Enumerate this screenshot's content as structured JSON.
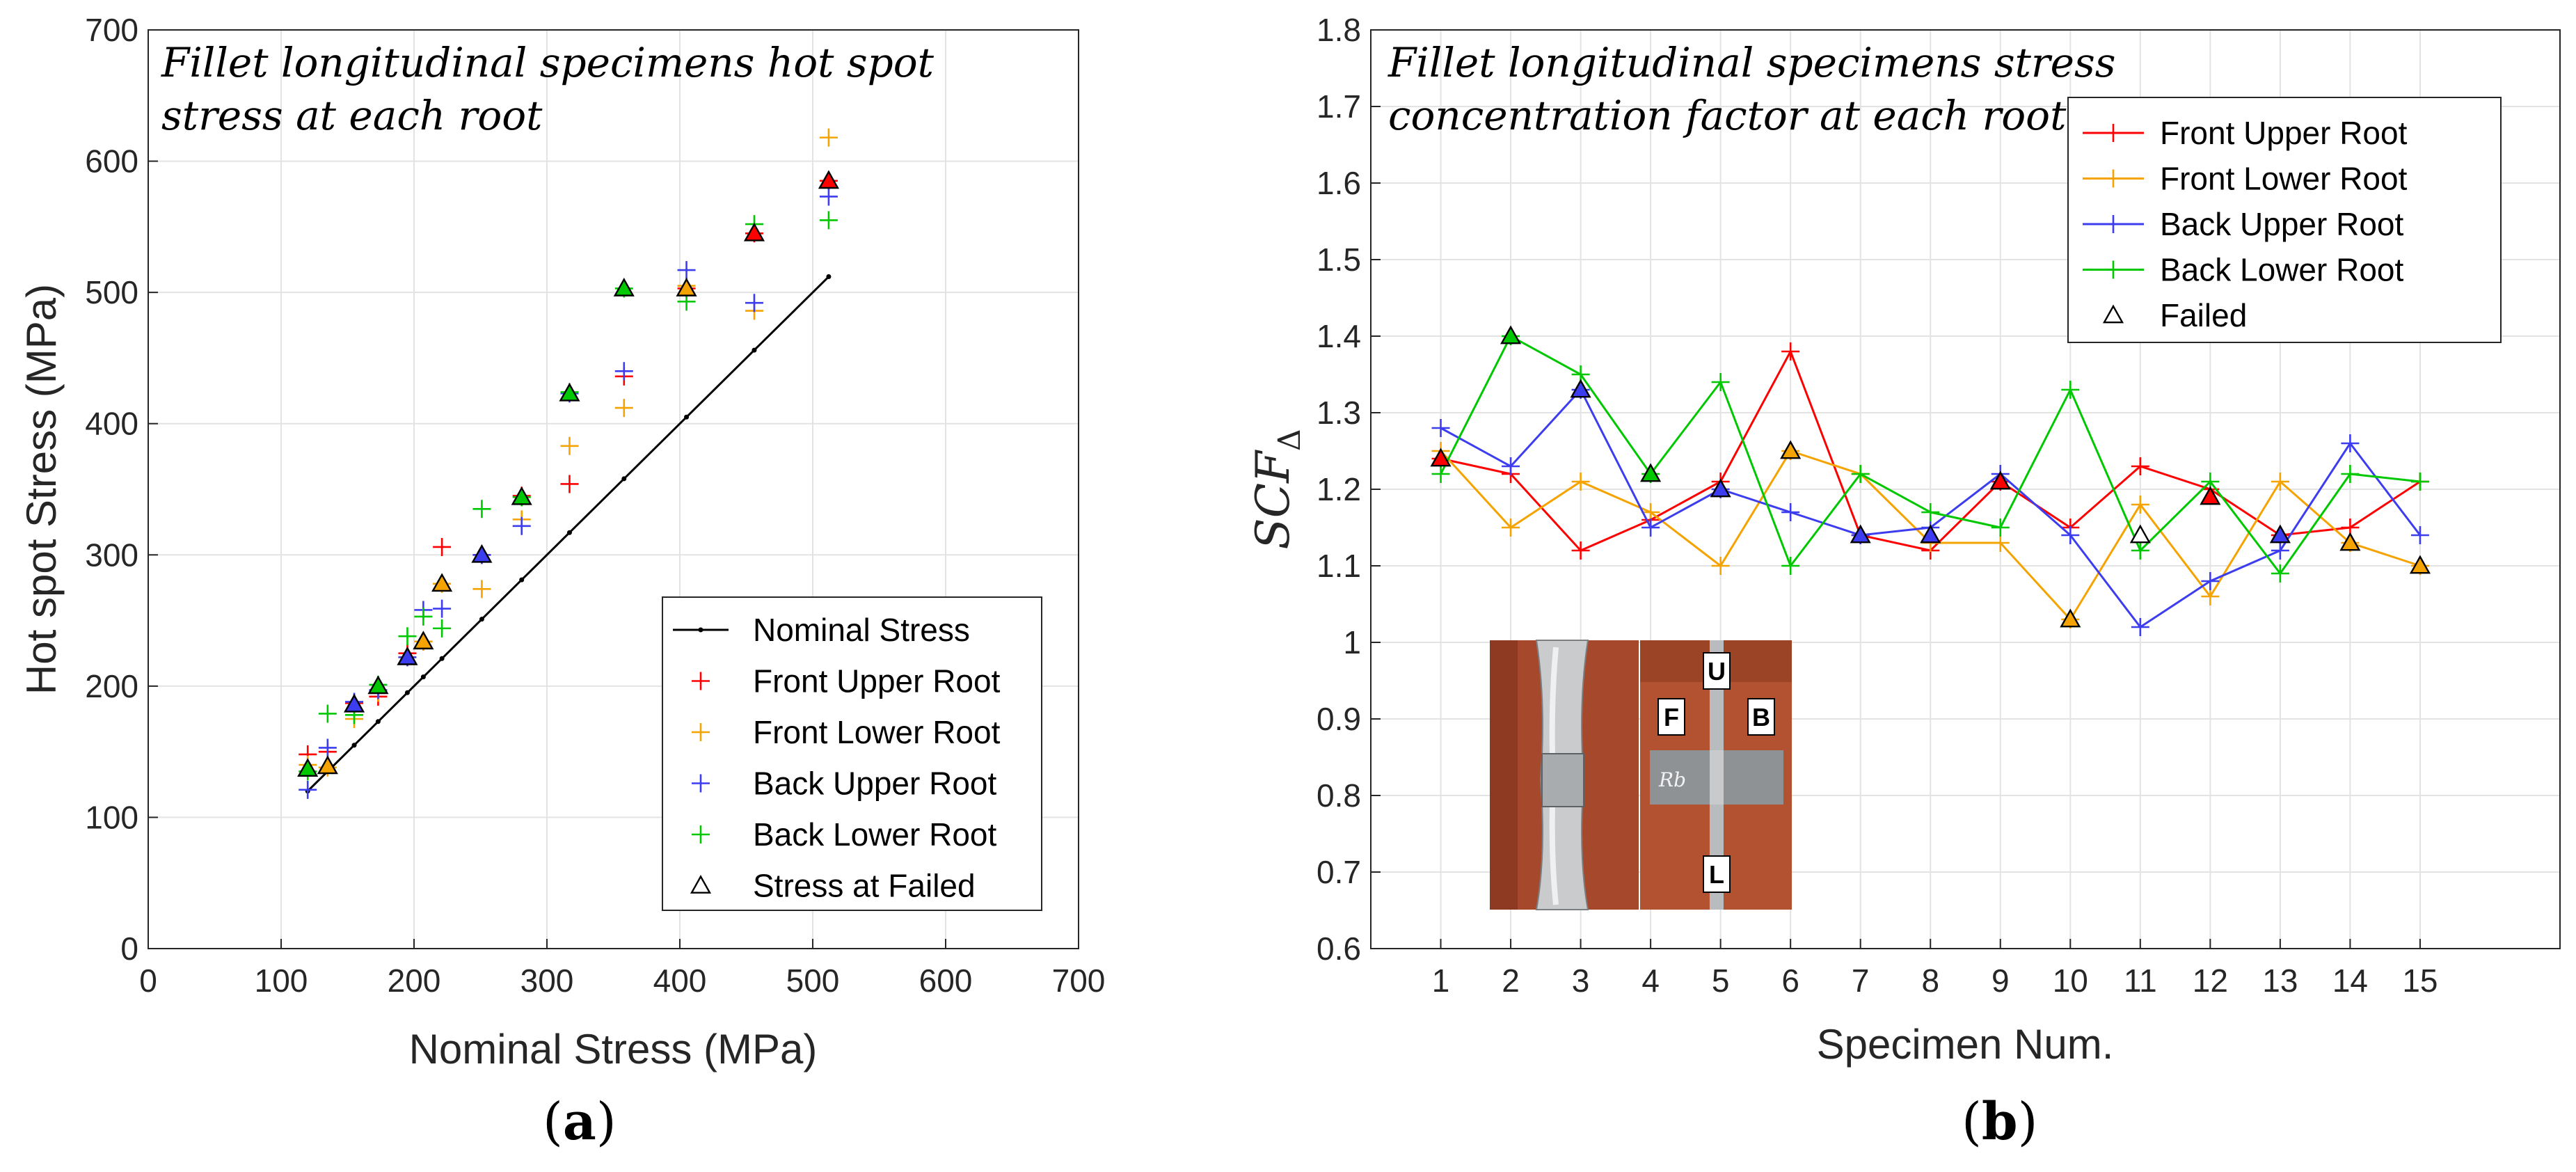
{
  "chart_data": [
    {
      "type": "scatter",
      "title": "Fillet longitudinal specimens hot spot stress at each root",
      "xlabel": "Nominal Stress (MPa)",
      "ylabel": "Hot spot Stress (MPa)",
      "xlim": [
        0,
        700
      ],
      "ylim": [
        0,
        700
      ],
      "xticks": [
        "0",
        "100",
        "200",
        "300",
        "400",
        "500",
        "600",
        "700"
      ],
      "yticks": [
        "0",
        "100",
        "200",
        "300",
        "400",
        "500",
        "600",
        "700"
      ],
      "grid": true,
      "legend_position": "bottom-right",
      "legend": [
        "Nominal Stress",
        "Front Upper Root",
        "Front Lower Root",
        "Back Upper Root",
        "Back Lower Root",
        "Stress at Failed"
      ],
      "nominal_x": [
        120,
        135,
        155,
        173,
        195,
        207,
        221,
        251,
        281,
        317,
        358,
        405,
        456,
        512
      ],
      "series": [
        {
          "name": "Front Upper Root",
          "color": "#ff0000",
          "x": [
            120,
            135,
            155,
            173,
            195,
            207,
            221,
            251,
            281,
            317,
            358,
            405,
            456,
            512
          ],
          "y": [
            148,
            150,
            187,
            192,
            225,
            234,
            306,
            300,
            345,
            354,
            436,
            503,
            545,
            585
          ]
        },
        {
          "name": "Front Lower Root",
          "color": "#f5a300",
          "x": [
            120,
            135,
            155,
            173,
            195,
            207,
            221,
            251,
            281,
            317,
            358,
            405,
            456,
            512
          ],
          "y": [
            140,
            138,
            175,
            195,
            222,
            234,
            278,
            274,
            327,
            383,
            412,
            505,
            486,
            618
          ]
        },
        {
          "name": "Back Upper Root",
          "color": "#3d3df0",
          "x": [
            120,
            135,
            155,
            173,
            195,
            207,
            221,
            251,
            281,
            317,
            358,
            405,
            456,
            512
          ],
          "y": [
            121,
            153,
            188,
            197,
            222,
            258,
            259,
            300,
            322,
            423,
            440,
            517,
            492,
            573
          ]
        },
        {
          "name": "Back Lower Root",
          "color": "#00c800",
          "x": [
            120,
            135,
            155,
            173,
            195,
            207,
            221,
            251,
            281,
            317,
            358,
            405,
            456,
            512
          ],
          "y": [
            135,
            179,
            178,
            201,
            238,
            253,
            244,
            335,
            344,
            424,
            503,
            493,
            552,
            555
          ]
        },
        {
          "name": "Stress at Failed",
          "x": [
            120,
            135,
            155,
            173,
            195,
            207,
            221,
            251,
            281,
            317,
            358,
            405,
            456,
            512
          ],
          "y": [
            137,
            139,
            186,
            200,
            222,
            234,
            278,
            300,
            344,
            423,
            503,
            503,
            545,
            585
          ],
          "fill": [
            "#00c800",
            "#f5a300",
            "#3d3df0",
            "#00c800",
            "#3d3df0",
            "#f5a300",
            "#f5a300",
            "#3d3df0",
            "#00c800",
            "#00c800",
            "#00c800",
            "#f5a300",
            "#ff0000",
            "#ff0000"
          ]
        }
      ]
    },
    {
      "type": "line",
      "title": "Fillet longitudinal specimens stress concentration factor at each root",
      "xlabel": "Specimen Num.",
      "ylabel": "SCF",
      "ylabel_subscript": "Δ",
      "xlim": [
        0,
        17
      ],
      "ylim": [
        0.6,
        1.8
      ],
      "xticks": [
        "1",
        "2",
        "3",
        "4",
        "5",
        "6",
        "7",
        "8",
        "9",
        "10",
        "11",
        "12",
        "13",
        "14",
        "15"
      ],
      "yticks": [
        "0.6",
        "0.7",
        "0.8",
        "0.9",
        "1",
        "1.1",
        "1.2",
        "1.3",
        "1.4",
        "1.5",
        "1.6",
        "1.7",
        "1.8"
      ],
      "grid": true,
      "legend_position": "top-right",
      "legend": [
        "Front Upper Root",
        "Front Lower Root",
        "Back Upper Root",
        "Back Lower Root",
        "Failed"
      ],
      "categories": [
        1,
        2,
        3,
        4,
        5,
        6,
        7,
        8,
        9,
        10,
        11,
        12,
        13,
        14,
        15
      ],
      "series": [
        {
          "name": "Front Upper Root",
          "color": "#ff0000",
          "values": [
            1.24,
            1.22,
            1.12,
            1.16,
            1.21,
            1.38,
            1.14,
            1.12,
            1.21,
            1.15,
            1.23,
            1.2,
            1.14,
            1.15,
            1.21
          ]
        },
        {
          "name": "Front Lower Root",
          "color": "#f5a300",
          "values": [
            1.25,
            1.15,
            1.21,
            1.17,
            1.1,
            1.25,
            1.22,
            1.13,
            1.13,
            1.03,
            1.18,
            1.06,
            1.21,
            1.13,
            1.1
          ]
        },
        {
          "name": "Back Upper Root",
          "color": "#3d3df0",
          "values": [
            1.28,
            1.23,
            1.33,
            1.15,
            1.2,
            1.17,
            1.14,
            1.15,
            1.22,
            1.14,
            1.02,
            1.08,
            1.12,
            1.26,
            1.14
          ]
        },
        {
          "name": "Back Lower Root",
          "color": "#00c800",
          "values": [
            1.22,
            1.4,
            1.35,
            1.22,
            1.34,
            1.1,
            1.22,
            1.17,
            1.15,
            1.33,
            1.12,
            1.21,
            1.09,
            1.22,
            1.21
          ]
        },
        {
          "name": "Failed",
          "values": [
            1.24,
            1.4,
            1.33,
            1.22,
            1.2,
            1.25,
            1.14,
            1.14,
            1.21,
            1.03,
            1.14,
            1.19,
            1.14,
            1.13,
            1.1
          ],
          "fill": [
            "#ff0000",
            "#00c800",
            "#3d3df0",
            "#00c800",
            "#3d3df0",
            "#f5a300",
            "#3d3df0",
            "#3d3df0",
            "#ff0000",
            "#f5a300",
            "#ffffff",
            "#ff0000",
            "#3d3df0",
            "#f5a300",
            "#f5a300"
          ]
        }
      ]
    }
  ],
  "captions": {
    "a": "a",
    "b": "b"
  },
  "photo": {
    "labels": {
      "u": "U",
      "f": "F",
      "b": "B",
      "l": "L"
    },
    "handwriting": "Rb"
  }
}
